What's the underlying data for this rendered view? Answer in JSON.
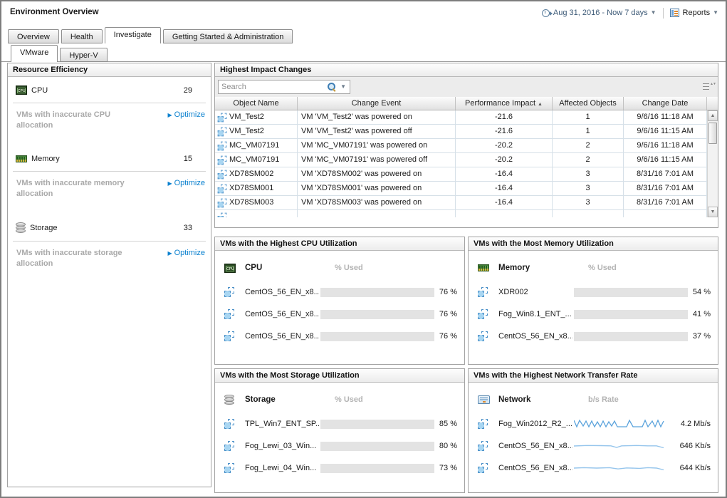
{
  "header": {
    "title": "Environment Overview",
    "timerange": "Aug 31, 2016 - Now 7 days",
    "reports_label": "Reports"
  },
  "icons": {
    "caret_down": "▼",
    "sort_asc": "▲",
    "optimize_arrow": "▶",
    "scroll_up": "▲",
    "scroll_down": "▼"
  },
  "colors": {
    "bar_fill": "#1797e8",
    "link_blue": "#0b81cf",
    "grid_line": "#d6e0e8"
  },
  "tabs": {
    "main": [
      {
        "label": "Overview"
      },
      {
        "label": "Health"
      },
      {
        "label": "Investigate"
      },
      {
        "label": "Getting Started & Administration"
      }
    ],
    "active_main": "Investigate",
    "sub": [
      {
        "label": "VMware"
      },
      {
        "label": "Hyper-V"
      }
    ],
    "active_sub": "VMware"
  },
  "resource_efficiency": {
    "title": "Resource Efficiency",
    "items": [
      {
        "name": "CPU",
        "value": "29",
        "note": "VMs with inaccurate CPU allocation",
        "action": "Optimize"
      },
      {
        "name": "Memory",
        "value": "15",
        "note": "VMs with inaccurate memory allocation",
        "action": "Optimize"
      },
      {
        "name": "Storage",
        "value": "33",
        "note": "VMs with inaccurate storage allocation",
        "action": "Optimize"
      }
    ]
  },
  "impact_changes": {
    "title": "Highest Impact Changes",
    "search_placeholder": "Search",
    "columns": {
      "object": "Object Name",
      "event": "Change Event",
      "impact": "Performance Impact",
      "affected": "Affected Objects",
      "date": "Change Date"
    },
    "sort_column": "Performance Impact",
    "rows": [
      {
        "object": "VM_Test2",
        "event": "VM 'VM_Test2' was powered on",
        "impact": "-21.6",
        "affected": "1",
        "date": "9/6/16 11:18 AM"
      },
      {
        "object": "VM_Test2",
        "event": "VM 'VM_Test2' was powered off",
        "impact": "-21.6",
        "affected": "1",
        "date": "9/6/16 11:15 AM"
      },
      {
        "object": "MC_VM07191",
        "event": "VM 'MC_VM07191' was powered on",
        "impact": "-20.2",
        "affected": "2",
        "date": "9/6/16 11:18 AM"
      },
      {
        "object": "MC_VM07191",
        "event": "VM 'MC_VM07191' was powered off",
        "impact": "-20.2",
        "affected": "2",
        "date": "9/6/16 11:15 AM"
      },
      {
        "object": "XD78SM002",
        "event": "VM 'XD78SM002' was powered on",
        "impact": "-16.4",
        "affected": "3",
        "date": "8/31/16 7:01 AM"
      },
      {
        "object": "XD78SM001",
        "event": "VM 'XD78SM001' was powered on",
        "impact": "-16.4",
        "affected": "3",
        "date": "8/31/16 7:01 AM"
      },
      {
        "object": "XD78SM003",
        "event": "VM 'XD78SM003' was powered on",
        "impact": "-16.4",
        "affected": "3",
        "date": "8/31/16 7:01 AM"
      }
    ]
  },
  "panels": {
    "cpu": {
      "title": "VMs with the Highest CPU Utilization",
      "group": "CPU",
      "metric": "% Used",
      "rows": [
        {
          "name": "CentOS_56_EN_x8...",
          "percent": 76,
          "value": "76 %"
        },
        {
          "name": "CentOS_56_EN_x8...",
          "percent": 76,
          "value": "76 %"
        },
        {
          "name": "CentOS_56_EN_x8...",
          "percent": 76,
          "value": "76 %"
        }
      ]
    },
    "memory": {
      "title": "VMs with the Most Memory Utilization",
      "group": "Memory",
      "metric": "% Used",
      "rows": [
        {
          "name": "XDR002",
          "percent": 54,
          "value": "54 %"
        },
        {
          "name": "Fog_Win8.1_ENT_...",
          "percent": 41,
          "value": "41 %"
        },
        {
          "name": "CentOS_56_EN_x8...",
          "percent": 37,
          "value": "37 %"
        }
      ]
    },
    "storage": {
      "title": "VMs with the Most Storage Utilization",
      "group": "Storage",
      "metric": "% Used",
      "rows": [
        {
          "name": "TPL_Win7_ENT_SP...",
          "percent": 85,
          "value": "85 %"
        },
        {
          "name": "Fog_Lewi_03_Win...",
          "percent": 80,
          "value": "80 %"
        },
        {
          "name": "Fog_Lewi_04_Win...",
          "percent": 73,
          "value": "73 %"
        }
      ]
    },
    "network": {
      "title": "VMs with the Highest Network Transfer Rate",
      "group": "Network",
      "metric": "b/s Rate",
      "rows": [
        {
          "name": "Fog_Win2012_R2_...",
          "value": "4.2 Mb/s"
        },
        {
          "name": "CentOS_56_EN_x8...",
          "value": "646 Kb/s"
        },
        {
          "name": "CentOS_56_EN_x8...",
          "value": "644 Kb/s"
        }
      ]
    }
  }
}
